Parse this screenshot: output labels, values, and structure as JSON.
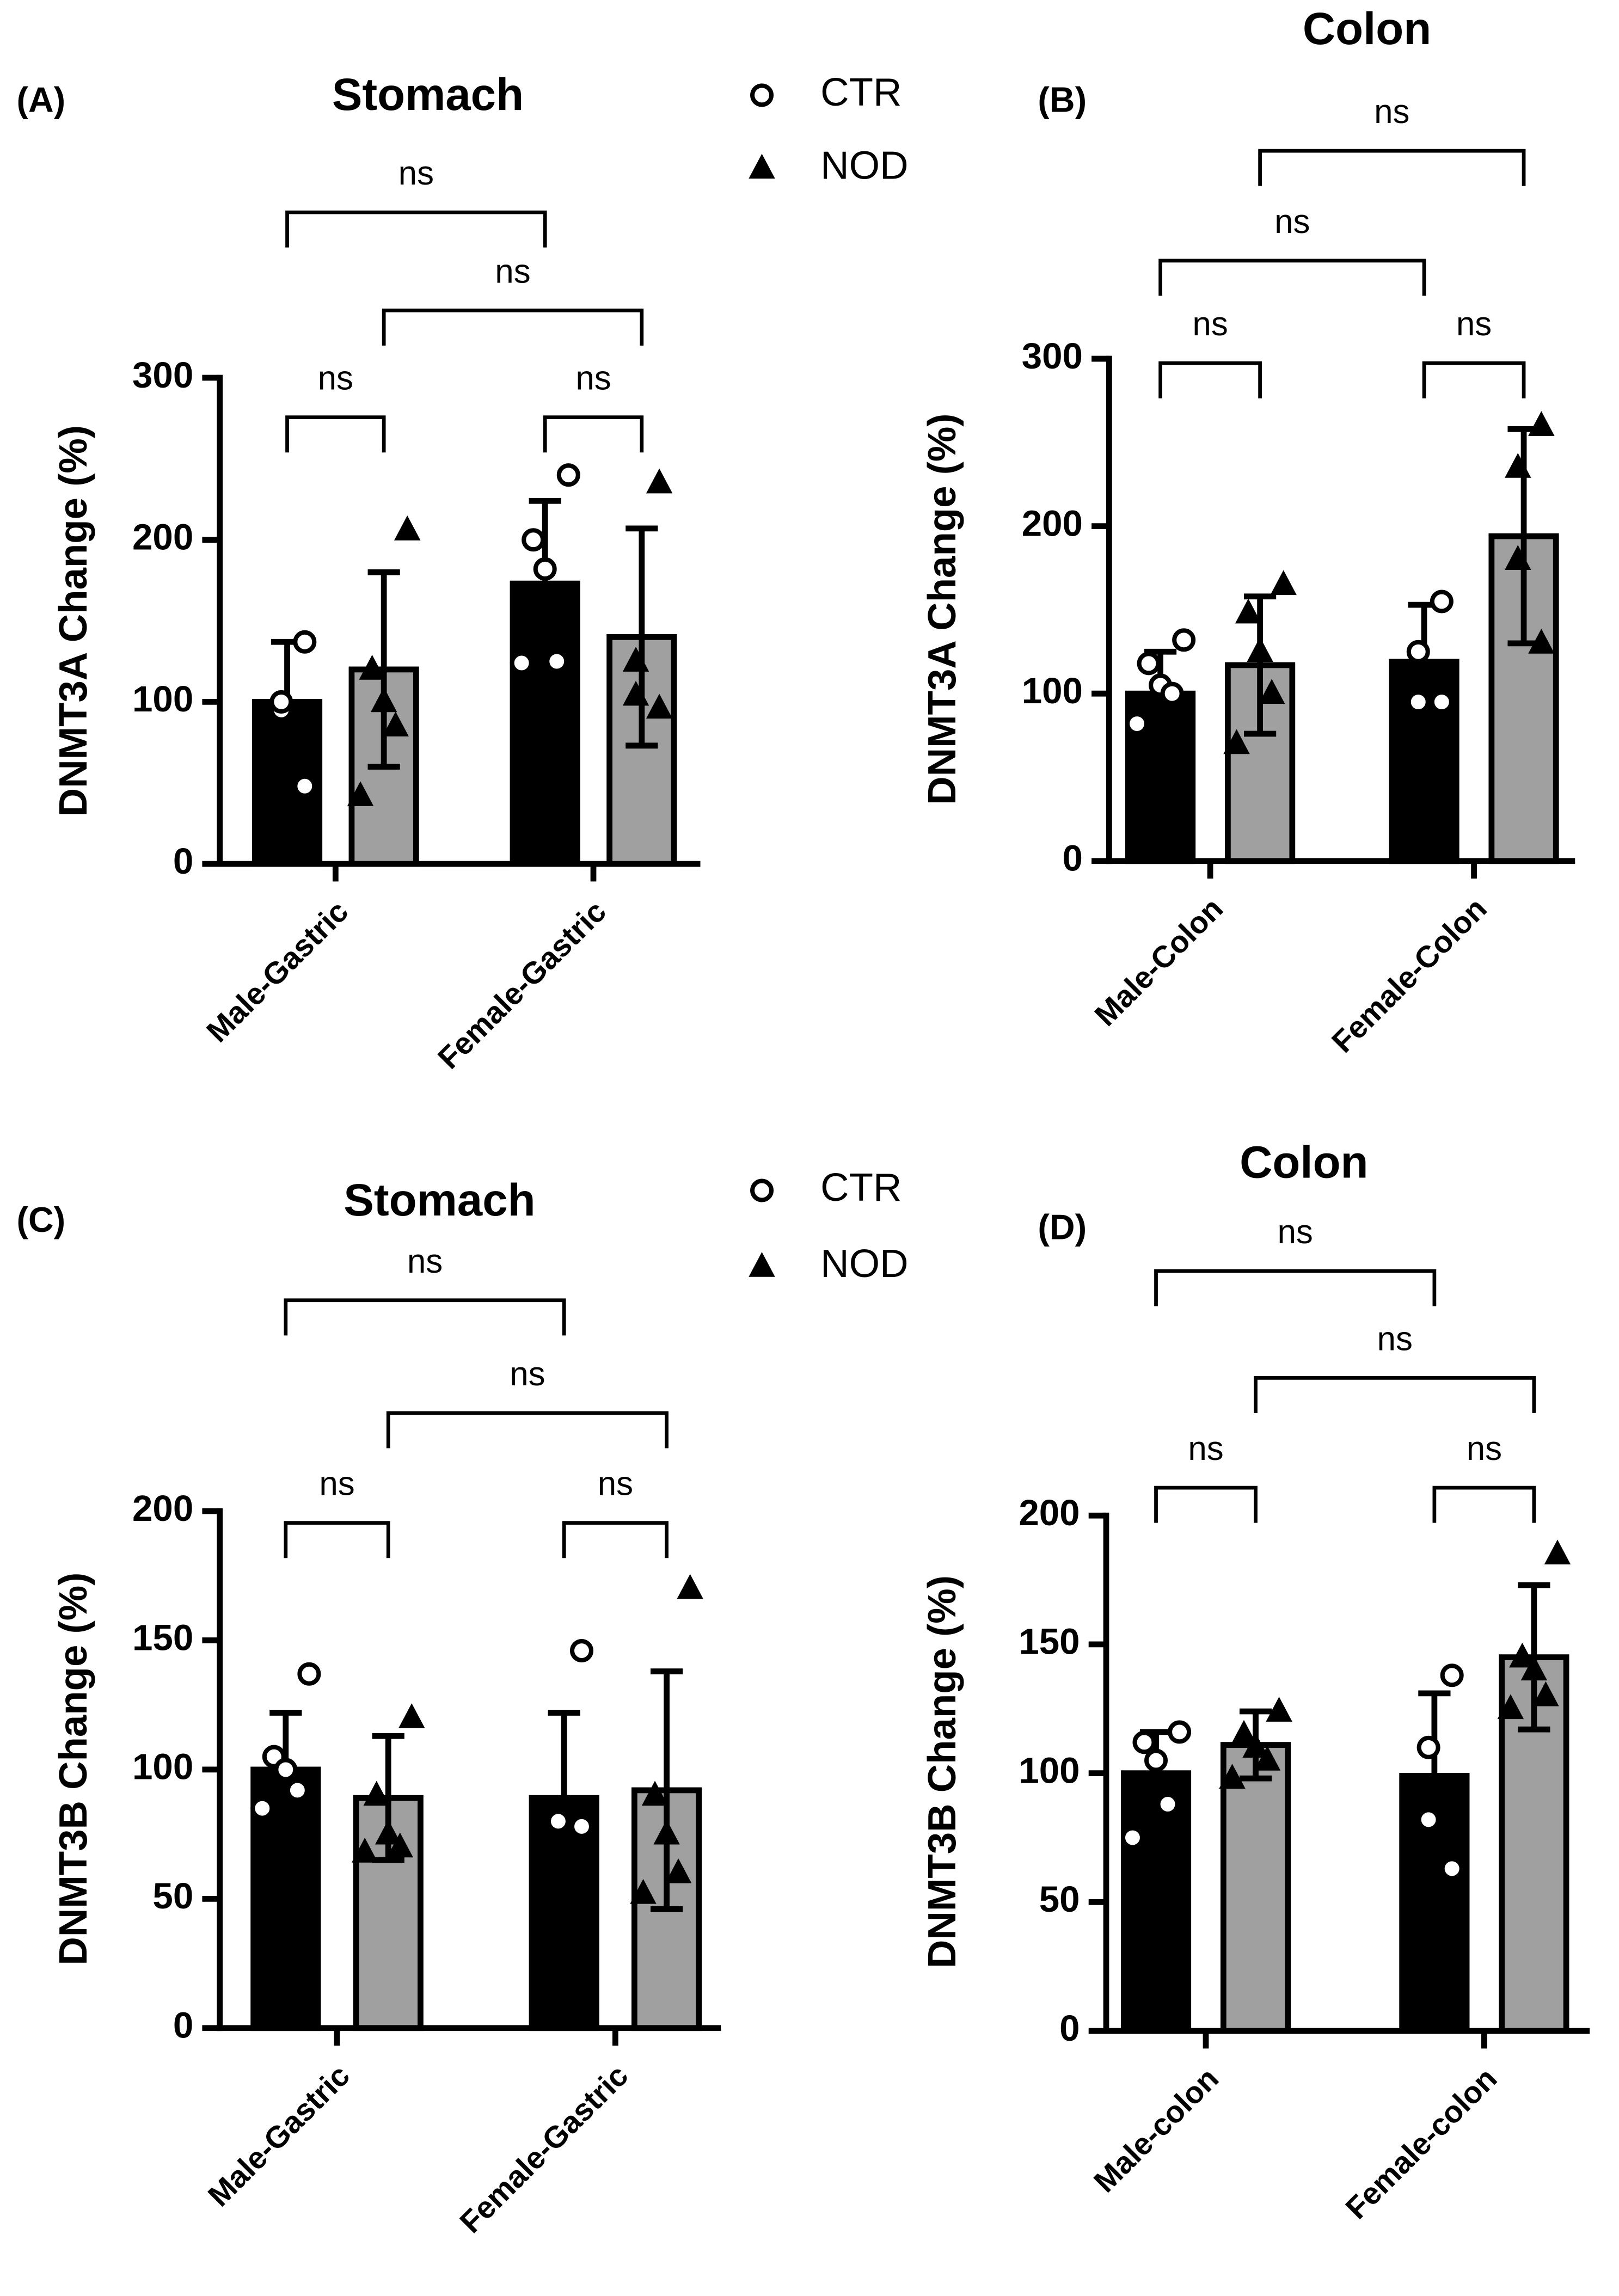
{
  "chart_data": [
    {
      "type": "bar",
      "panel": "(A)",
      "title": "Stomach",
      "ylabel": "DNMT3A Change (%)",
      "categories": [
        "Male-Gastric",
        "Female-Gastric"
      ],
      "series": [
        {
          "name": "CTR",
          "color": "#000000",
          "marker": "circle",
          "values": [
            100,
            173
          ],
          "errors": [
            37,
            51
          ],
          "points": [
            [
              137,
              95,
              100,
              48
            ],
            [
              240,
              200,
              182,
              125,
              124
            ]
          ]
        },
        {
          "name": "NOD",
          "color": "#a0a0a0",
          "marker": "triangle",
          "values": [
            120,
            140
          ],
          "errors": [
            60,
            67
          ],
          "points": [
            [
              206,
              120,
              100,
              85,
              42
            ],
            [
              235,
              125,
              104,
              96
            ]
          ]
        }
      ],
      "ylim": [
        0,
        300
      ],
      "yticks": [
        0,
        100,
        200,
        300
      ],
      "legend": true,
      "comparisons": [
        {
          "label": "ns",
          "bars": [
            0,
            2
          ]
        },
        {
          "label": "ns",
          "bars": [
            1,
            3
          ]
        },
        {
          "label": "ns",
          "bars": [
            0,
            1
          ]
        },
        {
          "label": "ns",
          "bars": [
            2,
            3
          ]
        }
      ]
    },
    {
      "type": "bar",
      "panel": "(B)",
      "title": "Colon",
      "ylabel": "DNMT3A Change (%)",
      "categories": [
        "Male-Colon",
        "Female-Colon"
      ],
      "series": [
        {
          "color": "#000000",
          "marker": "circle",
          "values": [
            100,
            119
          ],
          "errors": [
            25,
            34
          ],
          "points": [
            [
              132,
              118,
              105,
              100,
              82
            ],
            [
              155,
              125,
              95,
              95
            ]
          ]
        },
        {
          "color": "#a0a0a0",
          "marker": "triangle",
          "values": [
            117,
            194
          ],
          "errors": [
            41,
            64
          ],
          "points": [
            [
              165,
              148,
              125,
              100,
              70
            ],
            [
              260,
              235,
              180,
              130
            ]
          ]
        }
      ],
      "ylim": [
        0,
        300
      ],
      "yticks": [
        0,
        100,
        200,
        300
      ],
      "legend": false,
      "comparisons": [
        {
          "label": "ns",
          "bars": [
            1,
            3
          ]
        },
        {
          "label": "ns",
          "bars": [
            0,
            2
          ]
        },
        {
          "label": "ns",
          "bars": [
            0,
            1
          ]
        },
        {
          "label": "ns",
          "bars": [
            2,
            3
          ]
        }
      ]
    },
    {
      "type": "bar",
      "panel": "(C)",
      "title": "Stomach",
      "ylabel": "DNMT3B Change (%)",
      "categories": [
        "Male-Gastric",
        "Female-Gastric"
      ],
      "series": [
        {
          "name": "CTR",
          "color": "#000000",
          "marker": "circle",
          "values": [
            100,
            89
          ],
          "errors": [
            22,
            33
          ],
          "points": [
            [
              137,
              105,
              100,
              92,
              85
            ],
            [
              146,
              80,
              80,
              78
            ]
          ]
        },
        {
          "name": "NOD",
          "color": "#a0a0a0",
          "marker": "triangle",
          "values": [
            89,
            92
          ],
          "errors": [
            24,
            46
          ],
          "points": [
            [
              120,
              90,
              75,
              70,
              68
            ],
            [
              170,
              90,
              75,
              60,
              52
            ]
          ]
        }
      ],
      "ylim": [
        0,
        200
      ],
      "yticks": [
        0,
        50,
        100,
        150,
        200
      ],
      "legend": true,
      "comparisons": [
        {
          "label": "ns",
          "bars": [
            0,
            2
          ]
        },
        {
          "label": "ns",
          "bars": [
            1,
            3
          ]
        },
        {
          "label": "ns",
          "bars": [
            0,
            1
          ]
        },
        {
          "label": "ns",
          "bars": [
            2,
            3
          ]
        }
      ]
    },
    {
      "type": "bar",
      "panel": "(D)",
      "title": "Colon",
      "ylabel": "DNMT3B Change (%)",
      "categories": [
        "Male-colon",
        "Female-colon"
      ],
      "series": [
        {
          "color": "#000000",
          "marker": "circle",
          "values": [
            100,
            99
          ],
          "errors": [
            16,
            32
          ],
          "points": [
            [
              116,
              112,
              105,
              88,
              75
            ],
            [
              138,
              110,
              82,
              63
            ]
          ]
        },
        {
          "color": "#a0a0a0",
          "marker": "triangle",
          "values": [
            111,
            145
          ],
          "errors": [
            13,
            28
          ],
          "points": [
            [
              124,
              115,
              110,
              105,
              98
            ],
            [
              185,
              145,
              140,
              130,
              125
            ]
          ]
        }
      ],
      "ylim": [
        0,
        200
      ],
      "yticks": [
        0,
        50,
        100,
        150,
        200
      ],
      "legend": false,
      "comparisons": [
        {
          "label": "ns",
          "bars": [
            0,
            2
          ]
        },
        {
          "label": "ns",
          "bars": [
            1,
            3
          ]
        },
        {
          "label": "ns",
          "bars": [
            0,
            1
          ]
        },
        {
          "label": "ns",
          "bars": [
            2,
            3
          ]
        }
      ]
    }
  ]
}
